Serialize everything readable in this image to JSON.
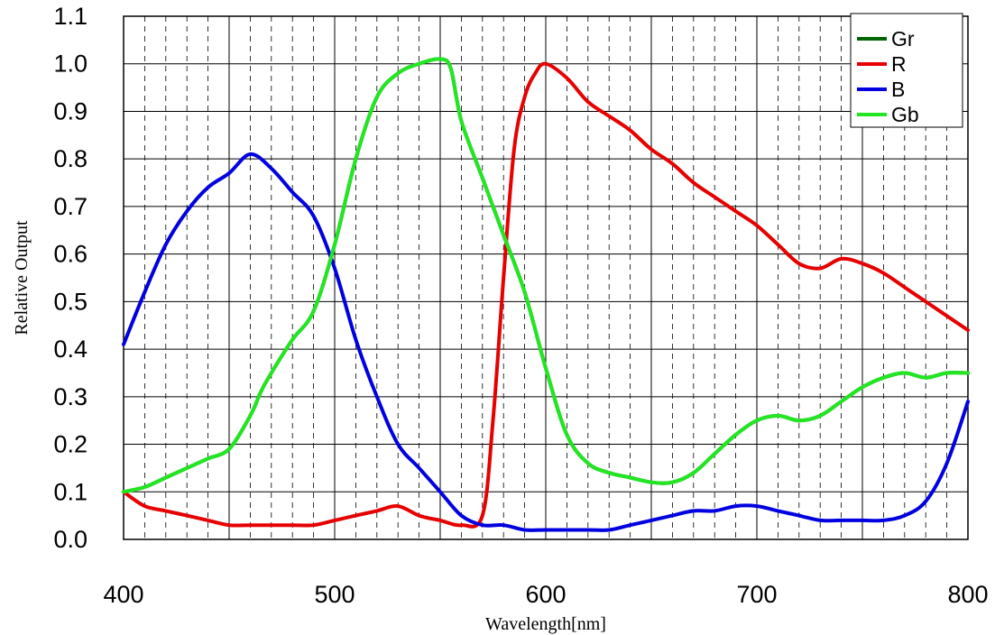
{
  "chart_data": {
    "type": "line",
    "xlabel": "Wavelength[nm]",
    "ylabel": "Relative Output",
    "xlim": [
      400,
      800
    ],
    "ylim": [
      0.0,
      1.1
    ],
    "x_ticks": [
      "400",
      "500",
      "600",
      "700",
      "800"
    ],
    "y_ticks": [
      "0.0",
      "0.1",
      "0.2",
      "0.3",
      "0.4",
      "0.5",
      "0.6",
      "0.7",
      "0.8",
      "0.9",
      "1.0",
      "1.1"
    ],
    "grid": true,
    "legend_position": "top-right",
    "series": [
      {
        "name": "Gr",
        "color": "#006400",
        "points": [
          [
            400,
            0.1
          ],
          [
            410,
            0.11
          ],
          [
            420,
            0.13
          ],
          [
            430,
            0.15
          ],
          [
            440,
            0.17
          ],
          [
            450,
            0.19
          ],
          [
            460,
            0.26
          ],
          [
            465,
            0.31
          ],
          [
            470,
            0.35
          ],
          [
            480,
            0.42
          ],
          [
            490,
            0.48
          ],
          [
            500,
            0.62
          ],
          [
            510,
            0.8
          ],
          [
            520,
            0.93
          ],
          [
            530,
            0.98
          ],
          [
            540,
            1.0
          ],
          [
            550,
            1.01
          ],
          [
            555,
            0.99
          ],
          [
            560,
            0.88
          ],
          [
            570,
            0.76
          ],
          [
            580,
            0.64
          ],
          [
            590,
            0.52
          ],
          [
            600,
            0.36
          ],
          [
            610,
            0.22
          ],
          [
            620,
            0.16
          ],
          [
            630,
            0.14
          ],
          [
            640,
            0.13
          ],
          [
            650,
            0.12
          ],
          [
            660,
            0.12
          ],
          [
            670,
            0.14
          ],
          [
            680,
            0.18
          ],
          [
            690,
            0.22
          ],
          [
            700,
            0.25
          ],
          [
            710,
            0.26
          ],
          [
            720,
            0.25
          ],
          [
            730,
            0.26
          ],
          [
            740,
            0.29
          ],
          [
            750,
            0.32
          ],
          [
            760,
            0.34
          ],
          [
            770,
            0.35
          ],
          [
            780,
            0.34
          ],
          [
            790,
            0.35
          ],
          [
            800,
            0.35
          ]
        ]
      },
      {
        "name": "R",
        "color": "#e60000",
        "points": [
          [
            400,
            0.1
          ],
          [
            410,
            0.07
          ],
          [
            420,
            0.06
          ],
          [
            430,
            0.05
          ],
          [
            440,
            0.04
          ],
          [
            450,
            0.03
          ],
          [
            460,
            0.03
          ],
          [
            470,
            0.03
          ],
          [
            480,
            0.03
          ],
          [
            490,
            0.03
          ],
          [
            500,
            0.04
          ],
          [
            510,
            0.05
          ],
          [
            520,
            0.06
          ],
          [
            530,
            0.07
          ],
          [
            540,
            0.05
          ],
          [
            550,
            0.04
          ],
          [
            560,
            0.03
          ],
          [
            570,
            0.05
          ],
          [
            575,
            0.25
          ],
          [
            580,
            0.55
          ],
          [
            585,
            0.82
          ],
          [
            590,
            0.93
          ],
          [
            595,
            0.98
          ],
          [
            600,
            1.0
          ],
          [
            610,
            0.97
          ],
          [
            620,
            0.92
          ],
          [
            630,
            0.89
          ],
          [
            640,
            0.86
          ],
          [
            650,
            0.82
          ],
          [
            660,
            0.79
          ],
          [
            670,
            0.75
          ],
          [
            680,
            0.72
          ],
          [
            690,
            0.69
          ],
          [
            700,
            0.66
          ],
          [
            710,
            0.62
          ],
          [
            720,
            0.58
          ],
          [
            730,
            0.57
          ],
          [
            740,
            0.59
          ],
          [
            750,
            0.58
          ],
          [
            760,
            0.56
          ],
          [
            770,
            0.53
          ],
          [
            780,
            0.5
          ],
          [
            790,
            0.47
          ],
          [
            800,
            0.44
          ]
        ]
      },
      {
        "name": "B",
        "color": "#0000e0",
        "points": [
          [
            400,
            0.41
          ],
          [
            410,
            0.52
          ],
          [
            420,
            0.62
          ],
          [
            430,
            0.69
          ],
          [
            440,
            0.74
          ],
          [
            450,
            0.77
          ],
          [
            460,
            0.81
          ],
          [
            470,
            0.78
          ],
          [
            480,
            0.73
          ],
          [
            490,
            0.68
          ],
          [
            500,
            0.57
          ],
          [
            510,
            0.42
          ],
          [
            520,
            0.3
          ],
          [
            530,
            0.2
          ],
          [
            540,
            0.15
          ],
          [
            550,
            0.1
          ],
          [
            560,
            0.05
          ],
          [
            570,
            0.03
          ],
          [
            580,
            0.03
          ],
          [
            590,
            0.02
          ],
          [
            600,
            0.02
          ],
          [
            610,
            0.02
          ],
          [
            620,
            0.02
          ],
          [
            630,
            0.02
          ],
          [
            640,
            0.03
          ],
          [
            650,
            0.04
          ],
          [
            660,
            0.05
          ],
          [
            670,
            0.06
          ],
          [
            680,
            0.06
          ],
          [
            690,
            0.07
          ],
          [
            700,
            0.07
          ],
          [
            710,
            0.06
          ],
          [
            720,
            0.05
          ],
          [
            730,
            0.04
          ],
          [
            740,
            0.04
          ],
          [
            750,
            0.04
          ],
          [
            760,
            0.04
          ],
          [
            770,
            0.05
          ],
          [
            780,
            0.08
          ],
          [
            790,
            0.16
          ],
          [
            800,
            0.29
          ]
        ]
      },
      {
        "name": "Gb",
        "color": "#22e622",
        "points": [
          [
            400,
            0.1
          ],
          [
            410,
            0.11
          ],
          [
            420,
            0.13
          ],
          [
            430,
            0.15
          ],
          [
            440,
            0.17
          ],
          [
            450,
            0.19
          ],
          [
            460,
            0.26
          ],
          [
            465,
            0.31
          ],
          [
            470,
            0.35
          ],
          [
            480,
            0.42
          ],
          [
            490,
            0.48
          ],
          [
            500,
            0.62
          ],
          [
            510,
            0.8
          ],
          [
            520,
            0.93
          ],
          [
            530,
            0.98
          ],
          [
            540,
            1.0
          ],
          [
            550,
            1.01
          ],
          [
            555,
            0.99
          ],
          [
            560,
            0.88
          ],
          [
            570,
            0.76
          ],
          [
            580,
            0.64
          ],
          [
            590,
            0.52
          ],
          [
            600,
            0.36
          ],
          [
            610,
            0.22
          ],
          [
            620,
            0.16
          ],
          [
            630,
            0.14
          ],
          [
            640,
            0.13
          ],
          [
            650,
            0.12
          ],
          [
            660,
            0.12
          ],
          [
            670,
            0.14
          ],
          [
            680,
            0.18
          ],
          [
            690,
            0.22
          ],
          [
            700,
            0.25
          ],
          [
            710,
            0.26
          ],
          [
            720,
            0.25
          ],
          [
            730,
            0.26
          ],
          [
            740,
            0.29
          ],
          [
            750,
            0.32
          ],
          [
            760,
            0.34
          ],
          [
            770,
            0.35
          ],
          [
            780,
            0.34
          ],
          [
            790,
            0.35
          ],
          [
            800,
            0.35
          ]
        ]
      }
    ]
  }
}
